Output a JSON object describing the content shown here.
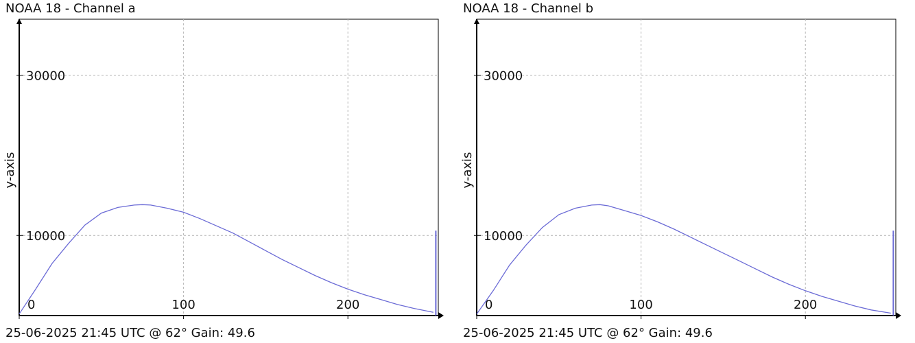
{
  "chart_data": [
    {
      "type": "line",
      "title": "NOAA 18 - Channel a",
      "footer": "25-06-2025 21:45 UTC @ 62° Gain: 49.6",
      "ylabel": "y-axis",
      "xlabel": "",
      "xlim": [
        0,
        255
      ],
      "ylim": [
        0,
        37000
      ],
      "grid": true,
      "x_ticks": [
        0,
        100,
        200
      ],
      "x_tick_labels": [
        "0",
        "100",
        "200"
      ],
      "y_ticks": [
        10000,
        30000
      ],
      "y_tick_labels": [
        "10000",
        "30000"
      ],
      "series": [
        {
          "color": "#6b6bd6",
          "x": [
            0,
            10,
            20,
            30,
            40,
            50,
            60,
            70,
            75,
            80,
            90,
            100,
            110,
            120,
            130,
            140,
            150,
            160,
            170,
            180,
            190,
            200,
            210,
            220,
            230,
            240,
            252
          ],
          "y": [
            200,
            3300,
            6500,
            9000,
            11300,
            12800,
            13500,
            13800,
            13850,
            13800,
            13400,
            12900,
            12100,
            11200,
            10300,
            9200,
            8100,
            7000,
            6000,
            5000,
            4100,
            3300,
            2600,
            2000,
            1400,
            900,
            400
          ]
        },
        {
          "color": "#6b6bd6",
          "x": [
            253.5,
            253.5
          ],
          "y": [
            0,
            10600
          ]
        }
      ]
    },
    {
      "type": "line",
      "title": "NOAA 18 - Channel b",
      "footer": "25-06-2025 21:45 UTC @ 62° Gain: 49.6",
      "ylabel": "y-axis",
      "xlabel": "",
      "xlim": [
        0,
        255
      ],
      "ylim": [
        0,
        37000
      ],
      "grid": true,
      "x_ticks": [
        0,
        100,
        200
      ],
      "x_tick_labels": [
        "0",
        "100",
        "200"
      ],
      "y_ticks": [
        10000,
        30000
      ],
      "y_tick_labels": [
        "10000",
        "30000"
      ],
      "series": [
        {
          "color": "#6b6bd6",
          "x": [
            0,
            10,
            20,
            30,
            40,
            50,
            60,
            70,
            75,
            80,
            90,
            100,
            110,
            120,
            130,
            140,
            150,
            160,
            170,
            180,
            190,
            200,
            210,
            220,
            230,
            240,
            252
          ],
          "y": [
            200,
            3100,
            6300,
            8800,
            11000,
            12600,
            13400,
            13800,
            13850,
            13700,
            13100,
            12500,
            11700,
            10800,
            9800,
            8800,
            7800,
            6800,
            5800,
            4800,
            3900,
            3100,
            2400,
            1800,
            1200,
            700,
            300
          ]
        },
        {
          "color": "#6b6bd6",
          "x": [
            253.5,
            253.5
          ],
          "y": [
            0,
            10600
          ]
        }
      ]
    }
  ]
}
